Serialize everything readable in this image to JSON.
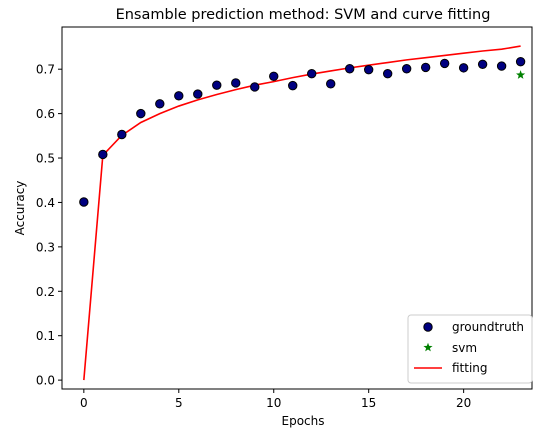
{
  "chart_data": {
    "type": "scatter",
    "title": "Ensamble prediction method: SVM and curve fitting",
    "xlabel": "Epochs",
    "ylabel": "Accuracy",
    "xlim": [
      -1.15,
      23.6
    ],
    "ylim": [
      -0.02,
      0.795
    ],
    "xticks": [
      0,
      5,
      10,
      15,
      20
    ],
    "yticks": [
      0.0,
      0.1,
      0.2,
      0.3,
      0.4,
      0.5,
      0.6,
      0.7
    ],
    "ytick_labels": [
      "0.0",
      "0.1",
      "0.2",
      "0.3",
      "0.4",
      "0.5",
      "0.6",
      "0.7"
    ],
    "grid": false,
    "legend_position": "lower-right",
    "series": [
      {
        "name": "groundtruth",
        "kind": "scatter",
        "marker": "circle",
        "color": "#000080",
        "edge_color": "#000000",
        "x": [
          0,
          1,
          2,
          3,
          4,
          5,
          6,
          7,
          8,
          9,
          10,
          11,
          12,
          13,
          14,
          15,
          16,
          17,
          18,
          19,
          20,
          21,
          22,
          23
        ],
        "y": [
          0.401,
          0.508,
          0.553,
          0.6,
          0.622,
          0.64,
          0.644,
          0.664,
          0.669,
          0.66,
          0.684,
          0.663,
          0.69,
          0.667,
          0.701,
          0.699,
          0.69,
          0.701,
          0.704,
          0.713,
          0.703,
          0.711,
          0.707,
          0.717
        ]
      },
      {
        "name": "svm",
        "kind": "scatter",
        "marker": "star",
        "color": "#008000",
        "x": [
          23
        ],
        "y": [
          0.687
        ]
      },
      {
        "name": "fitting",
        "kind": "line",
        "color": "#ff0000",
        "x": [
          0,
          1,
          2,
          3,
          4,
          5,
          6,
          7,
          8,
          9,
          10,
          11,
          12,
          13,
          14,
          15,
          16,
          17,
          18,
          19,
          20,
          21,
          22,
          23
        ],
        "y": [
          0.0,
          0.506,
          0.551,
          0.58,
          0.6,
          0.617,
          0.631,
          0.643,
          0.654,
          0.664,
          0.672,
          0.681,
          0.689,
          0.696,
          0.703,
          0.709,
          0.715,
          0.721,
          0.726,
          0.731,
          0.736,
          0.741,
          0.745,
          0.752
        ]
      }
    ]
  }
}
